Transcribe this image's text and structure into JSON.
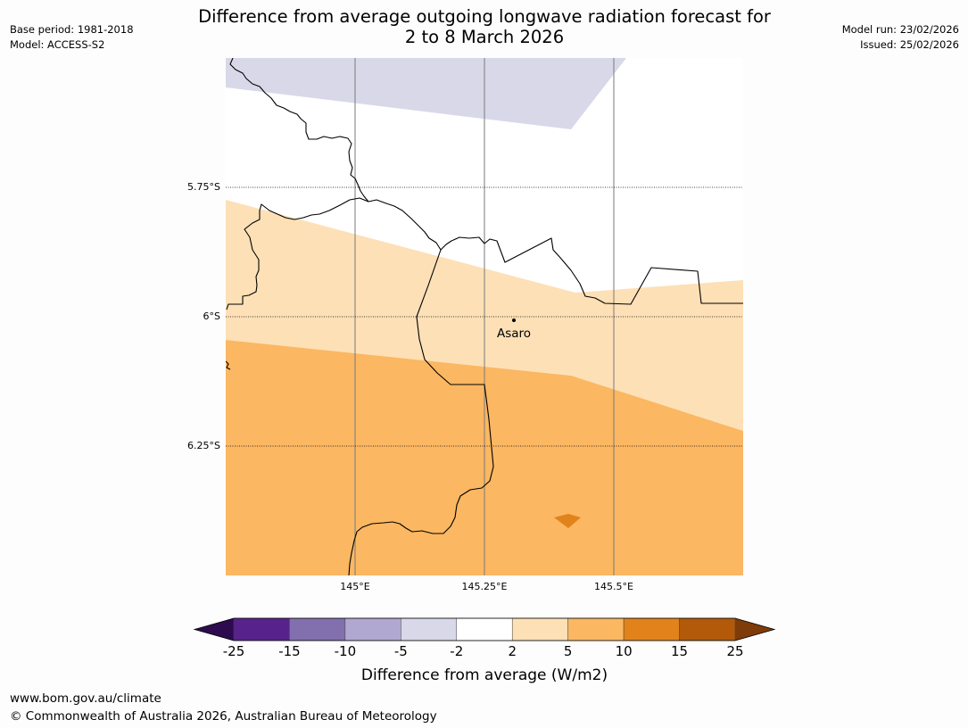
{
  "header": {
    "title_line1": "Difference from average outgoing longwave radiation forecast for",
    "title_line2": "2 to 8 March 2026",
    "base_period": "Base period: 1981-2018",
    "model": "Model: ACCESS-S2",
    "model_run": "Model run: 23/02/2026",
    "issued": "Issued: 25/02/2026"
  },
  "map": {
    "lat_labels": [
      "5.75°S",
      "6°S",
      "6.25°S"
    ],
    "lon_labels": [
      "145°E",
      "145.25°E",
      "145.5°E"
    ],
    "place": {
      "name": "Asaro"
    }
  },
  "colorbar": {
    "ticks": [
      "-25",
      "-15",
      "-10",
      "-5",
      "-2",
      "2",
      "5",
      "10",
      "15",
      "25"
    ],
    "colors": [
      "#57238b",
      "#8270ae",
      "#b1a8d2",
      "#d8d8e9",
      "#ffffff",
      "#fde0b6",
      "#fbb762",
      "#e1831a",
      "#b25a0a"
    ],
    "under_color": "#2e0b4f",
    "over_color": "#7f3b08",
    "label": "Difference from average (W/m2)"
  },
  "footer": {
    "website": "www.bom.gov.au/climate",
    "copyright": "© Commonwealth of Australia 2026, Australian Bureau of Meteorology"
  }
}
